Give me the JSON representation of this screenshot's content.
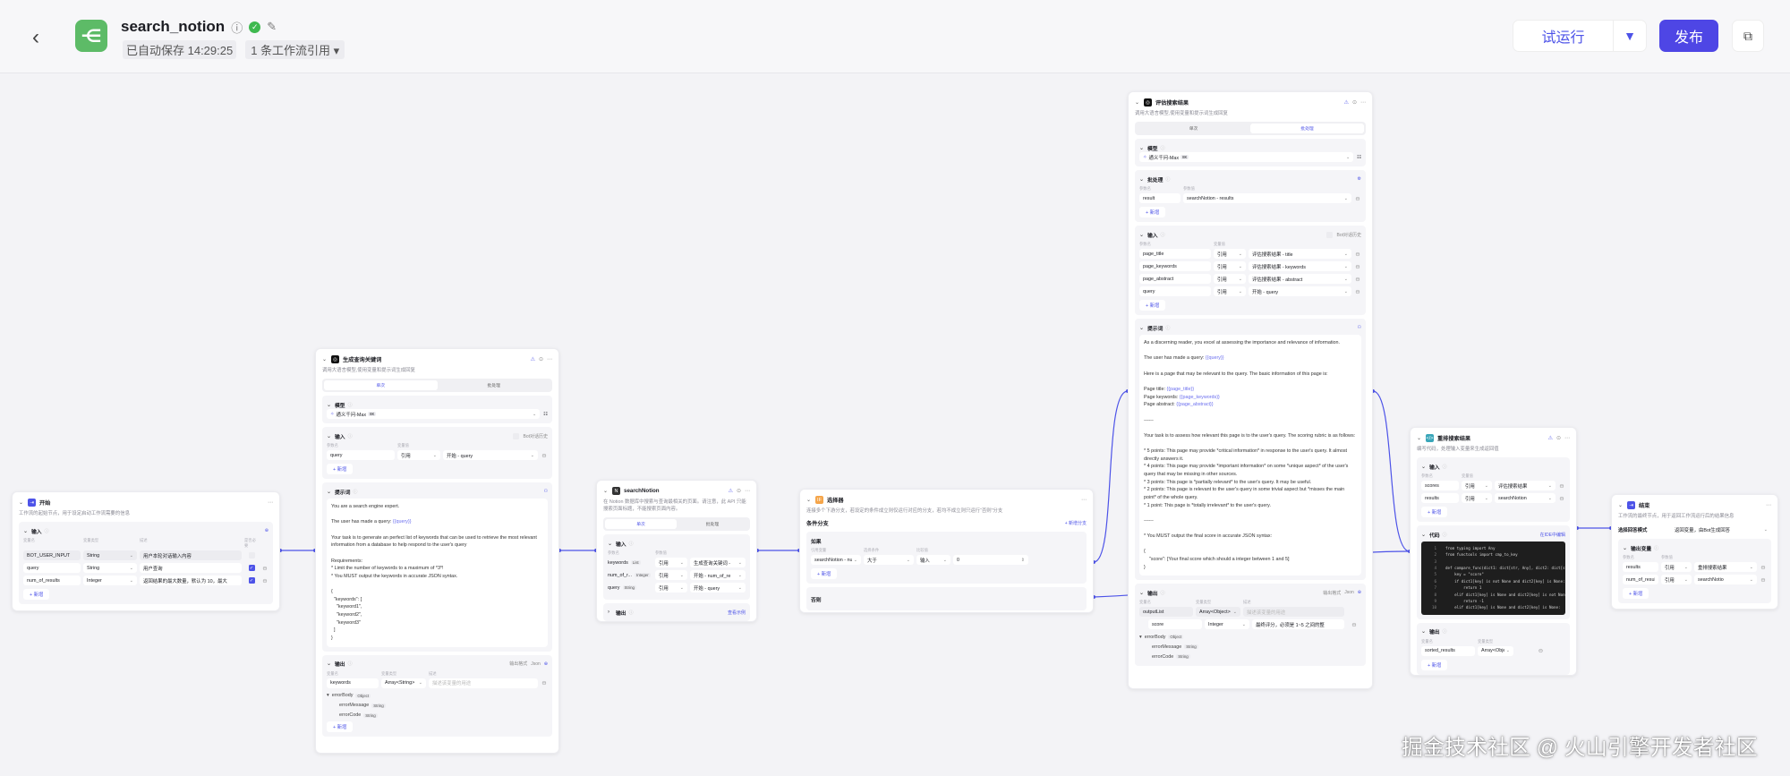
{
  "header": {
    "app_name": "search_notion",
    "saved": "已自动保存 14:29:25",
    "refs": "1 条工作流引用 ▾",
    "run_label": "试运行",
    "publish_label": "发布",
    "accent": "#4e46e5"
  },
  "nodes": {
    "start": {
      "title": "开始",
      "icon": "start-icon",
      "icon_char": "⇥",
      "icon_color": "#4d53e8",
      "desc": "工作流的起始节点，用于设定启动工作流需要的信息",
      "sections": [
        {
          "type": "params",
          "label": "输入",
          "right_icon": "⊕",
          "columns": [
            "变量名",
            "变量类型",
            "描述",
            "是否必要"
          ],
          "rows": [
            {
              "cells": [
                "BOT_USER_INPUT",
                "String",
                "用户本轮对话输入内容"
              ],
              "required": false,
              "locked": true
            },
            {
              "cells": [
                "query",
                "String",
                "用户查询"
              ],
              "required": true
            },
            {
              "cells": [
                "num_of_results",
                "Integer",
                "返回结果的最大数量，默认为 10，最大"
              ],
              "required": true
            }
          ],
          "add": "+ 新增"
        }
      ]
    },
    "llm1": {
      "title": "生成查询关键词",
      "icon": "llm-icon",
      "icon_char": "◎",
      "icon_color": "#111111",
      "desc": "调用大语言模型,使用变量和提示词生成回复",
      "tabs": [
        "单次",
        "批处理"
      ],
      "active_tab": 0,
      "sections": [
        {
          "type": "model",
          "label": "模型",
          "model": "通义千问-Max",
          "badge": "8K"
        },
        {
          "type": "params",
          "label": "输入",
          "check_label": "Bot对话历史",
          "columns": [
            "参数名",
            "变量值"
          ],
          "rows": [
            {
              "cells": [
                "query",
                "引用",
                "开始 - query"
              ]
            }
          ],
          "add": "+ 新增"
        },
        {
          "type": "prompt",
          "label": "提示词",
          "lines": [
            "You are a search engine expert.",
            "",
            [
              "The user has made a query: ",
              "{{query}}"
            ],
            "",
            "Your task is to generate an perfect list of keywords that can be used to retrieve the most relevant information from a database to help respond to the user's query",
            "",
            "Requirements:",
            "* Limit the number of keywords to a maximum of *3*!",
            "* You MUST output the keywords in accurate JSON syntax.",
            "",
            "{",
            "  \"keywords\": [",
            "    \"keyword1\",",
            "    \"keyword2\",",
            "    \"keyword3\"",
            "  ]",
            "}"
          ]
        },
        {
          "type": "output",
          "label": "输出",
          "format_label": "输出格式",
          "format": "Json",
          "columns": [
            "变量名",
            "变量类型",
            "描述"
          ],
          "rows": [
            {
              "cells": [
                "keywords",
                "Array<String>",
                "描述该变量的用途"
              ]
            }
          ],
          "tree": [
            {
              "name": "errorBody",
              "type": "Object",
              "depth": 0
            },
            {
              "name": "errorMessage",
              "type": "String",
              "depth": 1
            },
            {
              "name": "errorCode",
              "type": "String",
              "depth": 1
            }
          ],
          "add": "+ 新增"
        }
      ]
    },
    "search": {
      "title": "searchNotion",
      "icon": "plugin-icon",
      "icon_char": "N",
      "icon_color": "#333333",
      "desc": "在 Notion 数据库中搜索与查询最相关的页面。请注意，此 API 只能搜索页面标题，不能搜索页面内容。",
      "tabs": [
        "单次",
        "批处理"
      ],
      "active_tab": 0,
      "sections": [
        {
          "type": "params",
          "label": "输入",
          "columns": [
            "参数名",
            "参数值"
          ],
          "rows": [
            {
              "cells": [
                "keywords",
                "引用",
                "生成查询关键词 -"
              ],
              "tag": "List"
            },
            {
              "cells": [
                "num_of_r...",
                "引用",
                "开始 - num_of_re"
              ],
              "tag": "Integer"
            },
            {
              "cells": [
                "query",
                "引用",
                "开始 - query"
              ],
              "tag": "String"
            }
          ]
        },
        {
          "type": "collapsed",
          "label": "输出",
          "link": "查看示例"
        }
      ]
    },
    "sel": {
      "title": "选择器",
      "icon": "condition-icon",
      "icon_char": "IF",
      "icon_color": "#f5a54a",
      "desc": "连接多个下游分支，若设定的条件成立则仅运行对应的分支，若均不成立则只运行“否则”分支",
      "branch_title": "条件分支",
      "add_branch": "+ 新增分支",
      "if_label": "如果",
      "else_label": "否则",
      "columns": [
        "引用变量",
        "选择条件",
        "比较值"
      ],
      "condition": [
        "searchNotion - nur",
        "大于",
        "输入",
        "0"
      ],
      "add": "+ 新增"
    },
    "llm2": {
      "title": "评估搜索结果",
      "icon": "llm-icon",
      "icon_char": "◎",
      "icon_color": "#111111",
      "desc": "调用大语言模型,使用变量和提示词生成回复",
      "tabs": [
        "单次",
        "批处理"
      ],
      "active_tab": 1,
      "sections": [
        {
          "type": "model",
          "label": "模型",
          "model": "通义千问-Max",
          "badge": "8K"
        },
        {
          "type": "params",
          "label": "批处理",
          "right_icon": "⚙",
          "columns": [
            "参数名",
            "参数值"
          ],
          "rows": [
            {
              "cells": [
                "result",
                "searchNotion - results"
              ]
            }
          ],
          "add": "+ 新增"
        },
        {
          "type": "params",
          "label": "输入",
          "check_label": "Bot对话历史",
          "columns": [
            "参数名",
            "变量值"
          ],
          "rows": [
            {
              "cells": [
                "page_title",
                "引用",
                "评估搜索结果 - title"
              ]
            },
            {
              "cells": [
                "page_keywords",
                "引用",
                "评估搜索结果 - keywords"
              ]
            },
            {
              "cells": [
                "page_abstract",
                "引用",
                "评估搜索结果 - abstract"
              ]
            },
            {
              "cells": [
                "query",
                "引用",
                "开始 - query"
              ]
            }
          ],
          "add": "+ 新增"
        },
        {
          "type": "prompt",
          "label": "提示词",
          "lines": [
            "As a discerning reader, you excel at assessing the importance and relevance of information.",
            "",
            [
              "The user has made a query: ",
              "{{query}}"
            ],
            "",
            "Here is a page that may be relevant to the query. The basic information of this page is:",
            "",
            [
              "Page title: ",
              "{{page_title}}"
            ],
            [
              "Page keywords: ",
              "{{page_keywords}}"
            ],
            [
              "Page abstract: ",
              "{{page_abstract}}"
            ],
            "",
            "------",
            "",
            "Your task is to assess how relevant this page is to the user's query. The scoring rubric is as follows:",
            "",
            "* 5 points: This page may provide *critical information* in response to the user's query. It almost directly answers it.",
            "* 4 points: This page may provide *important information* on some *unique aspect* of the user's query that may be missing in other sources.",
            "* 3 points: This page is *partially relevant* to the user's query. It may be useful.",
            "* 2 points: This page is relevant to the user's query in some trivial aspect but *misses the main point* of the whole query.",
            "* 1 point: This page is *totally irrelevant* to the user's query.",
            "",
            "------",
            "",
            "* You MUST output the final score in accurate JSON syntax:",
            "",
            "{",
            "    \"score\": [Your final score which should a integer between 1 and 5]",
            "}"
          ]
        },
        {
          "type": "output",
          "label": "输出",
          "format_label": "输出格式",
          "format": "Json",
          "columns": [
            "变量名",
            "变量类型",
            "描述"
          ],
          "rows": [
            {
              "cells": [
                "outputList",
                "Array<Object>",
                "描述该变量的用途"
              ],
              "locked": true
            },
            {
              "cells": [
                "score",
                "Integer",
                "最终评分，必须是 1~5 之间的整"
              ],
              "child": true
            }
          ],
          "tree": [
            {
              "name": "errorBody",
              "type": "Object",
              "depth": 0
            },
            {
              "name": "errorMessage",
              "type": "String",
              "depth": 1
            },
            {
              "name": "errorCode",
              "type": "String",
              "depth": 1
            }
          ]
        }
      ]
    },
    "code": {
      "title": "重排搜索结果",
      "icon": "code-icon",
      "icon_char": "</>",
      "icon_color": "#3aa6b9",
      "desc": "编写代码，处理输入变量来生成返回值",
      "sections": [
        {
          "type": "params",
          "label": "输入",
          "columns": [
            "参数名",
            "变量值"
          ],
          "rows": [
            {
              "cells": [
                "scores",
                "引用",
                "评估搜索结果"
              ]
            },
            {
              "cells": [
                "results",
                "引用",
                "searchNotion"
              ]
            }
          ],
          "add": "+ 新增"
        },
        {
          "type": "code",
          "label": "代码",
          "link": "在IDE中编辑",
          "lines": [
            "from typing import Any",
            "from functools import cmp_to_key",
            "",
            "def compare_func(dict1: dict[str, Any], dict2: dict[str, Any]):",
            "    key = \"score\"",
            "    if dict1[key] is not None and dict2[key] is None:",
            "        return 1",
            "    elif dict1[key] is None and dict2[key] is not None:",
            "        return -1",
            "    elif dict1[key] is None and dict2[key] is None:"
          ]
        },
        {
          "type": "params",
          "label": "输出",
          "columns": [
            "变量名",
            "变量类型"
          ],
          "rows": [
            {
              "cells": [
                "sorted_results",
                "Array<Object>"
              ]
            }
          ],
          "add": "+ 新增"
        }
      ]
    },
    "end": {
      "title": "结束",
      "icon": "end-icon",
      "icon_char": "⇥",
      "icon_color": "#4d53e8",
      "desc": "工作流的最终节点，用于返回工作流运行后的结果信息",
      "mode_label": "选择回答模式",
      "mode_value": "返回变量，由Bot生成回答",
      "sections": [
        {
          "type": "params",
          "label": "输出变量",
          "columns": [
            "参数名",
            "参数值"
          ],
          "rows": [
            {
              "cells": [
                "results",
                "引用",
                "重排搜索结果"
              ]
            },
            {
              "cells": [
                "num_of_results",
                "引用",
                "searchNotio"
              ]
            }
          ],
          "add": "+ 新增"
        }
      ]
    }
  },
  "watermark": "掘金技术社区 @ 火山引擎开发者社区"
}
